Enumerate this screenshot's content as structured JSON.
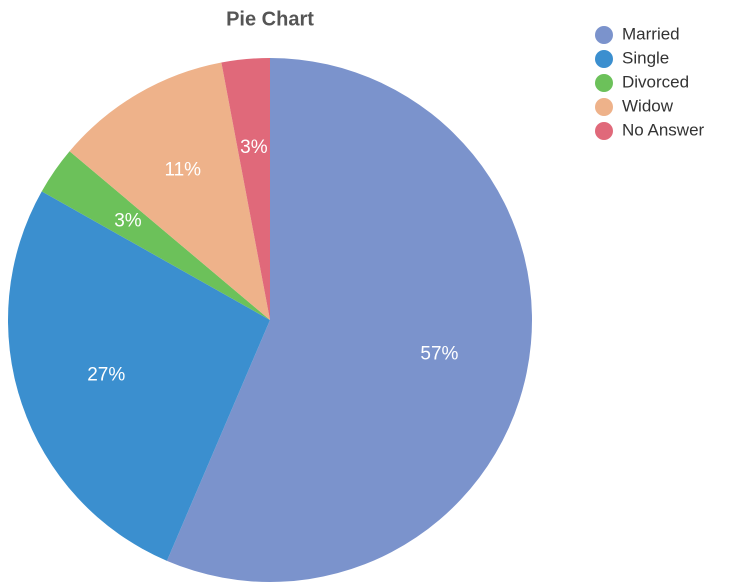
{
  "chart_data": {
    "type": "pie",
    "title": "Pie Chart",
    "categories": [
      "Married",
      "Single",
      "Divorced",
      "Widow",
      "No Answer"
    ],
    "values": [
      57,
      27,
      3,
      11,
      3
    ],
    "value_labels": [
      "57%",
      "27%",
      "3%",
      "11%",
      "3%"
    ],
    "colors": [
      "#7b93cc",
      "#3b8fcf",
      "#6cc15a",
      "#eeb28a",
      "#e0697a"
    ],
    "legend": "top-right"
  }
}
